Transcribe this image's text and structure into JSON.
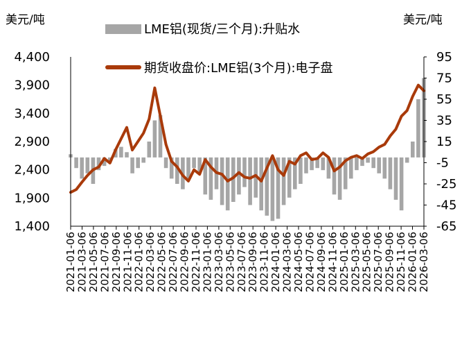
{
  "chart_data": {
    "type": "bar+line",
    "left_unit": "美元/吨",
    "right_unit": "美元/吨",
    "legend": [
      "LME铝(现货/三个月):升贴水",
      "期货收盘价:LME铝(3个月):电子盘"
    ],
    "left_axis": {
      "ticks": [
        "4,400",
        "3,900",
        "3,400",
        "2,900",
        "2,400",
        "1,900",
        "1,400"
      ],
      "ylim": [
        1400,
        4400
      ]
    },
    "right_axis": {
      "ticks": [
        "95",
        "75",
        "55",
        "35",
        "15",
        "-5",
        "-25",
        "-45",
        "-65"
      ],
      "ylim": [
        -65,
        95
      ]
    },
    "x_ticks": [
      "2021-01-06",
      "2021-03-06",
      "2021-05-06",
      "2021-07-06",
      "2021-09-06",
      "2021-11-06",
      "2022-01-06",
      "2022-03-06",
      "2022-05-06",
      "2022-07-06",
      "2022-09-06",
      "2022-11-06",
      "2023-01-06",
      "2023-03-06",
      "2023-05-06",
      "2023-07-06",
      "2023-09-06",
      "2023-11-06",
      "2024-01-06",
      "2024-03-06",
      "2024-05-06",
      "2024-07-06",
      "2024-09-06",
      "2024-11-06",
      "2025-01-06",
      "2025-03-06",
      "2025-05-06",
      "2025-07-06",
      "2025-09-06",
      "2025-11-06",
      "2026-01-06",
      "2026-03-06"
    ],
    "x_range": [
      0,
      63
    ],
    "series": [
      {
        "name": "期货收盘价:LME铝(3个月):电子盘",
        "axis": "left",
        "color": "#a93a0a",
        "x": [
          0,
          1,
          2,
          3,
          4,
          5,
          6,
          7,
          8,
          9,
          10,
          11,
          12,
          13,
          14,
          15,
          16,
          17,
          18,
          19,
          20,
          21,
          22,
          23,
          24,
          25,
          26,
          27,
          28,
          29,
          30,
          31,
          32,
          33,
          34,
          35,
          36,
          37,
          38,
          39,
          40,
          41,
          42,
          43,
          44,
          45,
          46,
          47,
          48,
          49,
          50,
          51,
          52,
          53,
          54,
          55,
          56,
          57,
          58,
          59,
          60,
          61,
          62,
          63
        ],
        "y": [
          2000,
          2050,
          2180,
          2300,
          2400,
          2450,
          2600,
          2520,
          2750,
          2950,
          3150,
          2750,
          2900,
          3050,
          3300,
          3850,
          3350,
          2850,
          2550,
          2450,
          2300,
          2200,
          2400,
          2320,
          2580,
          2450,
          2350,
          2320,
          2200,
          2260,
          2350,
          2270,
          2250,
          2300,
          2200,
          2430,
          2650,
          2400,
          2300,
          2550,
          2500,
          2650,
          2700,
          2580,
          2600,
          2700,
          2620,
          2380,
          2450,
          2560,
          2620,
          2650,
          2600,
          2680,
          2720,
          2800,
          2850,
          3000,
          3120,
          3350,
          3450,
          3700,
          3900,
          3800
        ]
      },
      {
        "name": "LME铝(现货/三个月):升贴水",
        "axis": "right",
        "color": "#a6a6a6",
        "x": [
          0,
          1,
          2,
          3,
          4,
          5,
          6,
          7,
          8,
          9,
          10,
          11,
          12,
          13,
          14,
          15,
          16,
          17,
          18,
          19,
          20,
          21,
          22,
          23,
          24,
          25,
          26,
          27,
          28,
          29,
          30,
          31,
          32,
          33,
          34,
          35,
          36,
          37,
          38,
          39,
          40,
          41,
          42,
          43,
          44,
          45,
          46,
          47,
          48,
          49,
          50,
          51,
          52,
          53,
          54,
          55,
          56,
          57,
          58,
          59,
          60,
          61,
          62,
          63
        ],
        "y": [
          3,
          -10,
          -20,
          -15,
          -25,
          -12,
          -8,
          -5,
          8,
          10,
          5,
          -15,
          -10,
          -5,
          15,
          35,
          40,
          -10,
          -20,
          -25,
          -30,
          -20,
          -10,
          -15,
          -35,
          -40,
          -30,
          -45,
          -50,
          -42,
          -35,
          -28,
          -45,
          -38,
          -50,
          -55,
          -60,
          -58,
          -45,
          -38,
          -30,
          -25,
          -15,
          -12,
          -10,
          -12,
          -20,
          -35,
          -40,
          -30,
          -20,
          -12,
          -8,
          -5,
          -10,
          -15,
          -20,
          -30,
          -40,
          -50,
          -5,
          15,
          55,
          75
        ]
      }
    ]
  }
}
